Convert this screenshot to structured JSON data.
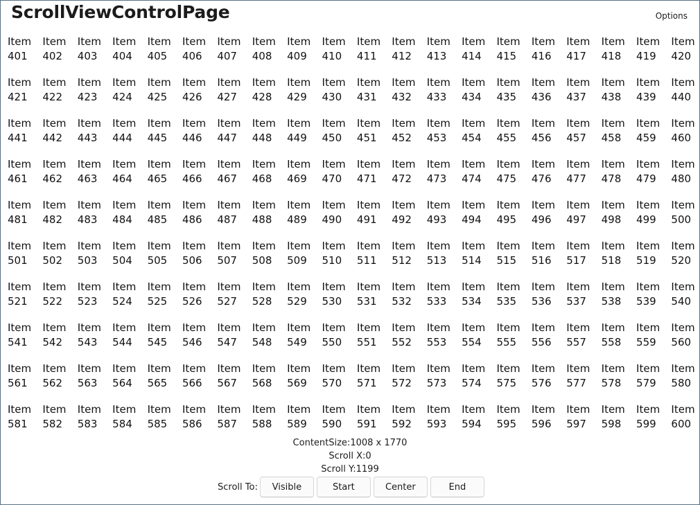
{
  "app": {
    "title": "ScrollViewControlPage",
    "options_label": "Options"
  },
  "scroll_view": {
    "item_prefix": "Item",
    "visible_rows": [
      [
        401,
        402,
        403,
        404,
        405,
        406,
        407,
        408,
        409,
        410,
        411,
        412,
        413,
        414,
        415,
        416,
        417,
        418,
        419,
        420
      ],
      [
        421,
        422,
        423,
        424,
        425,
        426,
        427,
        428,
        429,
        430,
        431,
        432,
        433,
        434,
        435,
        436,
        437,
        438,
        439,
        440
      ],
      [
        441,
        442,
        443,
        444,
        445,
        446,
        447,
        448,
        449,
        450,
        451,
        452,
        453,
        454,
        455,
        456,
        457,
        458,
        459,
        460
      ],
      [
        461,
        462,
        463,
        464,
        465,
        466,
        467,
        468,
        469,
        470,
        471,
        472,
        473,
        474,
        475,
        476,
        477,
        478,
        479,
        480
      ],
      [
        481,
        482,
        483,
        484,
        485,
        486,
        487,
        488,
        489,
        490,
        491,
        492,
        493,
        494,
        495,
        496,
        497,
        498,
        499,
        500
      ],
      [
        501,
        502,
        503,
        504,
        505,
        506,
        507,
        508,
        509,
        510,
        511,
        512,
        513,
        514,
        515,
        516,
        517,
        518,
        519,
        520
      ],
      [
        521,
        522,
        523,
        524,
        525,
        526,
        527,
        528,
        529,
        530,
        531,
        532,
        533,
        534,
        535,
        536,
        537,
        538,
        539,
        540
      ],
      [
        541,
        542,
        543,
        544,
        545,
        546,
        547,
        548,
        549,
        550,
        551,
        552,
        553,
        554,
        555,
        556,
        557,
        558,
        559,
        560
      ],
      [
        561,
        562,
        563,
        564,
        565,
        566,
        567,
        568,
        569,
        570,
        571,
        572,
        573,
        574,
        575,
        576,
        577,
        578,
        579,
        580
      ],
      [
        581,
        582,
        583,
        584,
        585,
        586,
        587,
        588,
        589,
        590,
        591,
        592,
        593,
        594,
        595,
        596,
        597,
        598,
        599,
        600
      ]
    ]
  },
  "info": {
    "content_size": "ContentSize:1008 x 1770",
    "scroll_x": "Scroll X:0",
    "scroll_y": "Scroll Y:1199"
  },
  "scroll_to": {
    "label": "Scroll To:",
    "buttons": [
      "Visible",
      "Start",
      "Center",
      "End"
    ]
  }
}
